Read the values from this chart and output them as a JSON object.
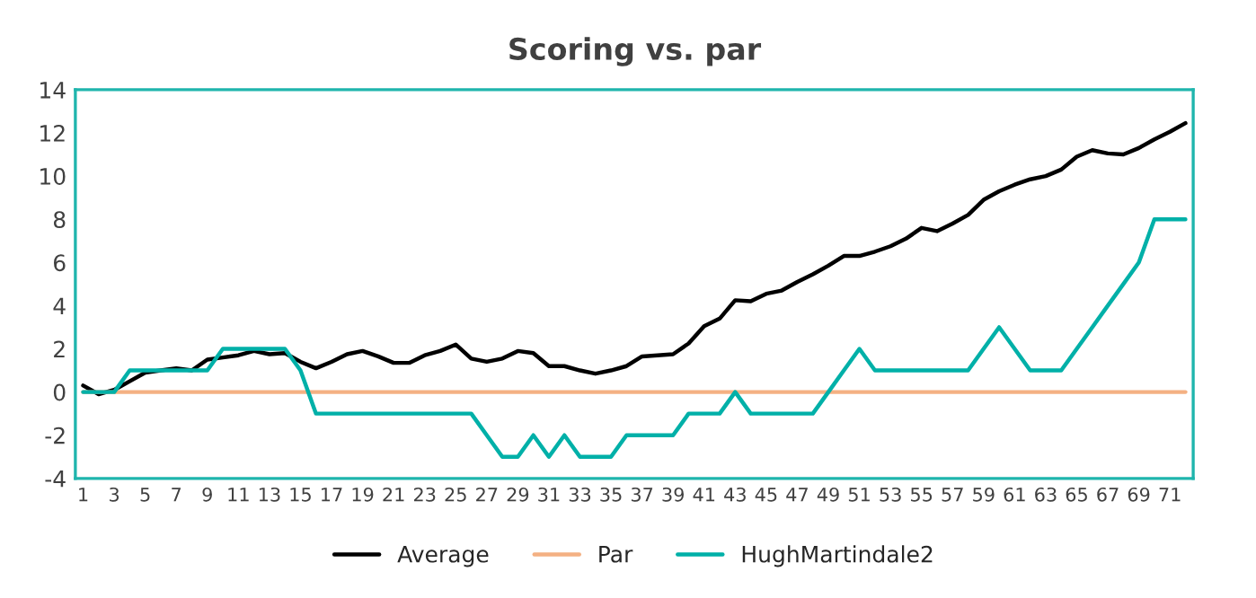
{
  "chart_data": {
    "type": "line",
    "title": "Scoring vs. par",
    "categories": [
      "1",
      null,
      "3",
      null,
      "5",
      null,
      "7",
      null,
      "9",
      null,
      "11",
      null,
      "13",
      null,
      "15",
      null,
      "17",
      null,
      "19",
      null,
      "21",
      null,
      "23",
      null,
      "25",
      null,
      "27",
      null,
      "29",
      null,
      "31",
      null,
      "33",
      null,
      "35",
      null,
      "37",
      null,
      "39",
      null,
      "41",
      null,
      "43",
      null,
      "45",
      null,
      "47",
      null,
      "49",
      null,
      "51",
      null,
      "53",
      null,
      "55",
      null,
      "57",
      null,
      "59",
      null,
      "61",
      null,
      "63",
      null,
      "65",
      null,
      "67",
      null,
      "69",
      null,
      "71",
      null
    ],
    "series": [
      {
        "name": "Average",
        "color": "#000000",
        "values": [
          0.3,
          -0.1,
          0.1,
          0.5,
          0.9,
          1.0,
          1.1,
          1.0,
          1.5,
          1.6,
          1.7,
          1.9,
          1.75,
          1.8,
          1.4,
          1.1,
          1.4,
          1.75,
          1.9,
          1.65,
          1.35,
          1.35,
          1.7,
          1.9,
          2.2,
          1.55,
          1.4,
          1.55,
          1.9,
          1.8,
          1.2,
          1.2,
          1.0,
          0.85,
          1.0,
          1.2,
          1.65,
          1.7,
          1.75,
          2.25,
          3.05,
          3.4,
          4.25,
          4.2,
          4.55,
          4.7,
          5.1,
          5.45,
          5.85,
          6.3,
          6.3,
          6.5,
          6.75,
          7.1,
          7.6,
          7.45,
          7.8,
          8.2,
          8.9,
          9.3,
          9.6,
          9.85,
          10.0,
          10.3,
          10.9,
          11.2,
          11.05,
          11.0,
          11.3,
          11.7,
          12.05,
          12.45
        ]
      },
      {
        "name": "Par",
        "color": "#f4b183",
        "values": [
          0,
          0,
          0,
          0,
          0,
          0,
          0,
          0,
          0,
          0,
          0,
          0,
          0,
          0,
          0,
          0,
          0,
          0,
          0,
          0,
          0,
          0,
          0,
          0,
          0,
          0,
          0,
          0,
          0,
          0,
          0,
          0,
          0,
          0,
          0,
          0,
          0,
          0,
          0,
          0,
          0,
          0,
          0,
          0,
          0,
          0,
          0,
          0,
          0,
          0,
          0,
          0,
          0,
          0,
          0,
          0,
          0,
          0,
          0,
          0,
          0,
          0,
          0,
          0,
          0,
          0,
          0,
          0,
          0,
          0,
          0,
          0
        ]
      },
      {
        "name": "HughMartindale2",
        "color": "#00b0a8",
        "values": [
          0,
          0,
          0,
          1,
          1,
          1,
          1,
          1,
          1,
          2,
          2,
          2,
          2,
          2,
          1,
          -1,
          -1,
          -1,
          -1,
          -1,
          -1,
          -1,
          -1,
          -1,
          -1,
          -1,
          -2,
          -3,
          -3,
          -2,
          -3,
          -2,
          -3,
          -3,
          -3,
          -2,
          -2,
          -2,
          -2,
          -1,
          -1,
          -1,
          0,
          -1,
          -1,
          -1,
          -1,
          -1,
          0,
          1,
          2,
          1,
          1,
          1,
          1,
          1,
          1,
          1,
          2,
          3,
          2,
          1,
          1,
          1,
          2,
          3,
          4,
          5,
          6,
          8,
          8,
          8
        ]
      }
    ],
    "ylim": [
      -4,
      14
    ],
    "yticks": [
      -4,
      -2,
      0,
      2,
      4,
      6,
      8,
      10,
      12,
      14
    ],
    "grid": false,
    "legend": "bottom",
    "marker": "none",
    "line_style": "solid"
  }
}
